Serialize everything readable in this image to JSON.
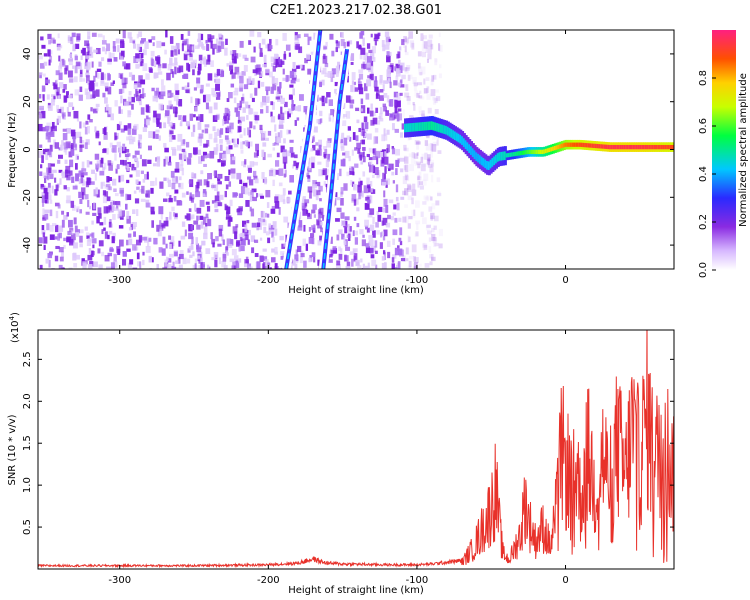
{
  "title": "C2E1.2023.217.02.38.G01",
  "colors": {
    "snr_line": "#e8312a",
    "spectrogram_noise": "#8a2be2"
  },
  "chart_data": [
    {
      "type": "heatmap",
      "title": "C2E1.2023.217.02.38.G01",
      "xlabel": "Height of straight line (km)",
      "ylabel": "Frequency (Hz)",
      "xlim": [
        -355,
        73
      ],
      "ylim": [
        -50,
        50
      ],
      "xticks": [
        -300,
        -200,
        -100,
        0
      ],
      "yticks": [
        40,
        20,
        0,
        -20,
        -40
      ],
      "colorbar": {
        "label": "Normalized spectral amplitude",
        "range": [
          0,
          1
        ],
        "ticks": [
          "0.0",
          "0.2",
          "0.4",
          "0.6",
          "0.8"
        ],
        "colormap": "rainbow (violet to red)"
      },
      "features": [
        {
          "kind": "noise",
          "x_range": [
            -355,
            -85
          ],
          "amplitude": 0.15
        },
        {
          "kind": "line",
          "points": [
            [
              -188,
              -50
            ],
            [
              -180,
              -20
            ],
            [
              -172,
              10
            ],
            [
              -165,
              50
            ]
          ],
          "amplitude": 0.25
        },
        {
          "kind": "line",
          "points": [
            [
              -163,
              -50
            ],
            [
              -158,
              -20
            ],
            [
              -152,
              20
            ],
            [
              -147,
              42
            ]
          ],
          "amplitude": 0.3
        },
        {
          "kind": "signal",
          "points": [
            [
              -108,
              9
            ],
            [
              -90,
              10
            ],
            [
              -80,
              8
            ],
            [
              -70,
              4
            ],
            [
              -60,
              -3
            ],
            [
              -52,
              -7
            ],
            [
              -45,
              -3
            ],
            [
              -35,
              -2
            ],
            [
              -25,
              -1
            ],
            [
              -15,
              -1
            ],
            [
              -5,
              1
            ],
            [
              0,
              2
            ],
            [
              10,
              2
            ],
            [
              30,
              1
            ],
            [
              50,
              1
            ],
            [
              73,
              1
            ]
          ],
          "amplitude": [
            0.45,
            0.5,
            0.45,
            0.42,
            0.4,
            0.42,
            0.45,
            0.5,
            0.6,
            0.7,
            0.8,
            0.85,
            0.9,
            0.95,
            0.95,
            0.9
          ]
        }
      ]
    },
    {
      "type": "line",
      "xlabel": "Height of straight line (km)",
      "ylabel": "SNR (10 * v/v)",
      "y_multiplier": "(x10",
      "y_multiplier_exp": "4",
      "y_multiplier_close": ")",
      "xlim": [
        -355,
        73
      ],
      "ylim": [
        0,
        2.85
      ],
      "xticks": [
        -300,
        -200,
        -100,
        0
      ],
      "yticks": [
        0.5,
        1.0,
        1.5,
        2.0,
        2.5
      ],
      "series": [
        {
          "x": [
            -355,
            -250,
            -200,
            -180,
            -170,
            -165,
            -160,
            -150,
            -120,
            -100,
            -90,
            -80,
            -70,
            -62,
            -55,
            -50,
            -47,
            -44,
            -42,
            -38,
            -35,
            -30,
            -27,
            -25,
            -22,
            -20,
            -15,
            -10,
            -5,
            -3,
            0,
            2,
            5,
            8,
            10,
            15,
            20,
            25,
            30,
            35,
            40,
            45,
            50,
            55,
            60,
            65,
            70,
            73
          ],
          "y": [
            0.04,
            0.04,
            0.05,
            0.07,
            0.12,
            0.09,
            0.07,
            0.06,
            0.05,
            0.05,
            0.06,
            0.08,
            0.1,
            0.35,
            0.7,
            1.0,
            1.35,
            0.6,
            0.25,
            0.15,
            0.3,
            0.6,
            1.15,
            0.8,
            0.6,
            0.45,
            0.7,
            0.35,
            1.2,
            1.95,
            1.7,
            1.6,
            1.35,
            1.7,
            1.1,
            1.9,
            1.3,
            1.85,
            1.4,
            2.1,
            1.5,
            2.3,
            1.7,
            2.6,
            1.6,
            2.4,
            1.8,
            1.5
          ]
        }
      ]
    }
  ]
}
